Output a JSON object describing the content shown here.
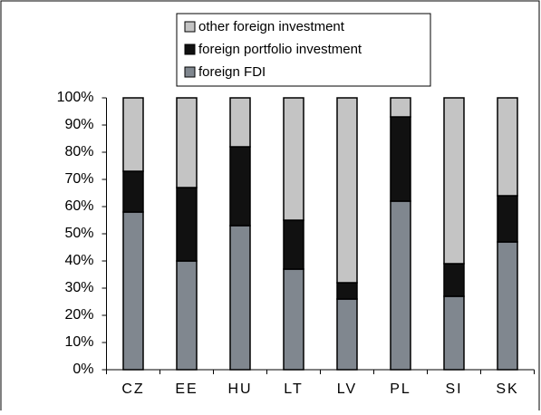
{
  "chart_data": {
    "type": "stacked-bar",
    "categories": [
      "CZ",
      "EE",
      "HU",
      "LT",
      "LV",
      "PL",
      "SI",
      "SK"
    ],
    "series": [
      {
        "name": "foreign FDI",
        "color": "#80878f",
        "values": [
          58,
          40,
          53,
          37,
          26,
          62,
          27,
          47
        ]
      },
      {
        "name": "foreign portfolio investment",
        "color": "#111111",
        "values": [
          15,
          27,
          29,
          18,
          6,
          31,
          12,
          17
        ]
      },
      {
        "name": "other foreign investment",
        "color": "#c4c4c4",
        "values": [
          27,
          33,
          18,
          45,
          68,
          7,
          61,
          36
        ]
      }
    ],
    "ylim": [
      0,
      100
    ],
    "yticks": [
      {
        "value": 0,
        "label": "0%"
      },
      {
        "value": 10,
        "label": "10%"
      },
      {
        "value": 20,
        "label": "20%"
      },
      {
        "value": 30,
        "label": "30%"
      },
      {
        "value": 40,
        "label": "40%"
      },
      {
        "value": 50,
        "label": "50%"
      },
      {
        "value": 60,
        "label": "60%"
      },
      {
        "value": 70,
        "label": "70%"
      },
      {
        "value": 80,
        "label": "80%"
      },
      {
        "value": 90,
        "label": "90%"
      },
      {
        "value": 100,
        "label": "100%"
      }
    ],
    "legend": "top"
  }
}
